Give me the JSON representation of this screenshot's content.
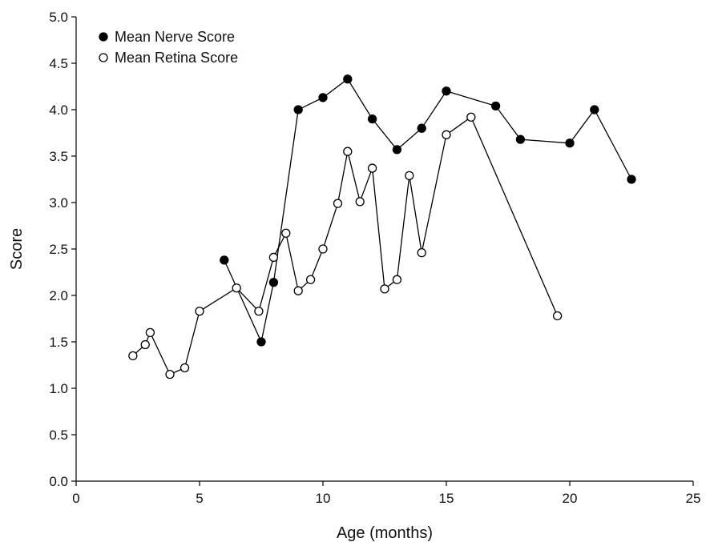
{
  "chart_data": {
    "type": "line",
    "title": "",
    "xlabel": "Age (months)",
    "ylabel": "Score",
    "xlim": [
      0,
      25
    ],
    "ylim": [
      0,
      5
    ],
    "xticks": [
      0,
      5,
      10,
      15,
      20,
      25
    ],
    "yticks": [
      "0.0",
      "0.5",
      "1.0",
      "1.5",
      "2.0",
      "2.5",
      "3.0",
      "3.5",
      "4.0",
      "4.5",
      "5.0"
    ],
    "grid": false,
    "legend_position": "top-left",
    "series": [
      {
        "name": "Mean Nerve Score",
        "marker": "filled-circle",
        "color": "#000000",
        "points": [
          [
            6.0,
            2.38
          ],
          [
            7.5,
            1.5
          ],
          [
            8.0,
            2.14
          ],
          [
            9.0,
            4.0
          ],
          [
            10.0,
            4.13
          ],
          [
            11.0,
            4.33
          ],
          [
            12.0,
            3.9
          ],
          [
            13.0,
            3.57
          ],
          [
            14.0,
            3.8
          ],
          [
            15.0,
            4.2
          ],
          [
            17.0,
            4.04
          ],
          [
            18.0,
            3.68
          ],
          [
            20.0,
            3.64
          ],
          [
            21.0,
            4.0
          ],
          [
            22.5,
            3.25
          ]
        ]
      },
      {
        "name": "Mean Retina Score",
        "marker": "open-circle",
        "color": "#000000",
        "points": [
          [
            2.3,
            1.35
          ],
          [
            2.8,
            1.47
          ],
          [
            3.0,
            1.6
          ],
          [
            3.8,
            1.15
          ],
          [
            4.4,
            1.22
          ],
          [
            5.0,
            1.83
          ],
          [
            6.5,
            2.08
          ],
          [
            7.4,
            1.83
          ],
          [
            8.0,
            2.41
          ],
          [
            8.5,
            2.67
          ],
          [
            9.0,
            2.05
          ],
          [
            9.5,
            2.17
          ],
          [
            10.0,
            2.5
          ],
          [
            10.6,
            2.99
          ],
          [
            11.0,
            3.55
          ],
          [
            11.5,
            3.01
          ],
          [
            12.0,
            3.37
          ],
          [
            12.5,
            2.07
          ],
          [
            13.0,
            2.17
          ],
          [
            13.5,
            3.29
          ],
          [
            14.0,
            2.46
          ],
          [
            15.0,
            3.73
          ],
          [
            16.0,
            3.92
          ],
          [
            19.5,
            1.78
          ]
        ]
      }
    ]
  }
}
